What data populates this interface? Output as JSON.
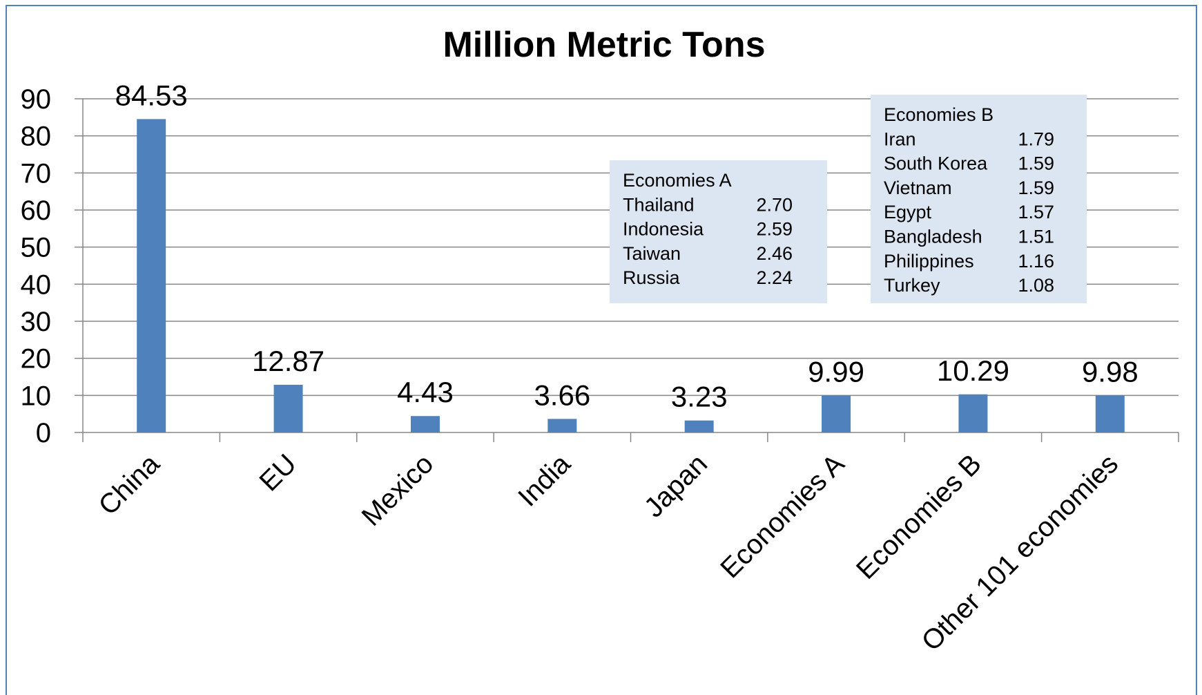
{
  "chart_data": {
    "type": "bar",
    "title": "Million Metric Tons",
    "xlabel": "",
    "ylabel": "",
    "ylim": [
      0,
      90
    ],
    "yticks": [
      0,
      10,
      20,
      30,
      40,
      50,
      60,
      70,
      80,
      90
    ],
    "grid": true,
    "legend": "none",
    "bar_color": "#4F81BD",
    "categories": [
      "China",
      "EU",
      "Mexico",
      "India",
      "Japan",
      "Economies A",
      "Economies B",
      "Other 101 economies"
    ],
    "values": [
      84.53,
      12.87,
      4.43,
      3.66,
      3.23,
      9.99,
      10.29,
      9.98
    ],
    "data_labels": [
      "84.53",
      "12.87",
      "4.43",
      "3.66",
      "3.23",
      "9.99",
      "10.29",
      "9.98"
    ],
    "annotations": [
      {
        "title": "Economies  A",
        "rows": [
          {
            "name": "Thailand",
            "value": "2.70"
          },
          {
            "name": "Indonesia",
            "value": "2.59"
          },
          {
            "name": "Taiwan",
            "value": "2.46"
          },
          {
            "name": "Russia",
            "value": "2.24"
          }
        ]
      },
      {
        "title": "Economies B",
        "rows": [
          {
            "name": "Iran",
            "value": "1.79"
          },
          {
            "name": "South Korea",
            "value": "1.59"
          },
          {
            "name": "Vietnam",
            "value": "1.59"
          },
          {
            "name": "Egypt",
            "value": "1.57"
          },
          {
            "name": "Bangladesh",
            "value": "1.51"
          },
          {
            "name": "Philippines",
            "value": "1.16"
          },
          {
            "name": "Turkey",
            "value": "1.08"
          }
        ]
      }
    ]
  }
}
